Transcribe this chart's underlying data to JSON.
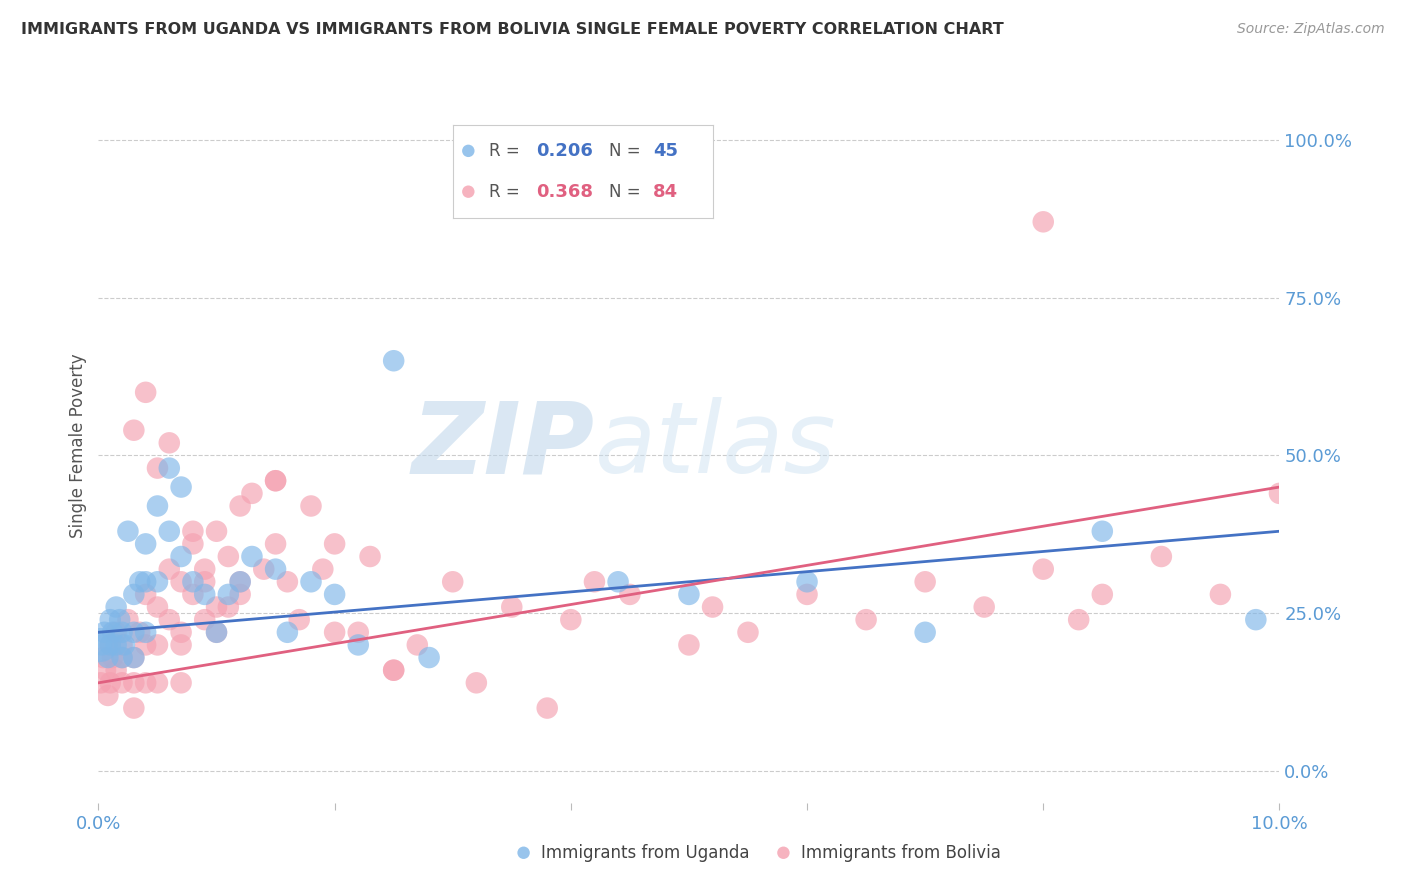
{
  "title": "IMMIGRANTS FROM UGANDA VS IMMIGRANTS FROM BOLIVIA SINGLE FEMALE POVERTY CORRELATION CHART",
  "source": "Source: ZipAtlas.com",
  "ylabel": "Single Female Poverty",
  "xlim": [
    0.0,
    0.1
  ],
  "ylim": [
    -0.05,
    1.08
  ],
  "yticks": [
    0.0,
    0.25,
    0.5,
    0.75,
    1.0
  ],
  "ytick_labels": [
    "0.0%",
    "25.0%",
    "50.0%",
    "75.0%",
    "100.0%"
  ],
  "xticks": [
    0.0,
    0.02,
    0.04,
    0.06,
    0.08,
    0.1
  ],
  "xtick_labels": [
    "0.0%",
    "",
    "",
    "",
    "",
    "10.0%"
  ],
  "color_uganda": "#7EB6E8",
  "color_bolivia": "#F4A0B0",
  "color_line_uganda": "#4472C4",
  "color_line_bolivia": "#E06080",
  "color_axis_labels": "#5B9BD5",
  "watermark_zip": "ZIP",
  "watermark_atlas": "atlas",
  "uganda_x": [
    0.0003,
    0.0005,
    0.0008,
    0.001,
    0.001,
    0.0012,
    0.0015,
    0.0015,
    0.0018,
    0.002,
    0.002,
    0.0022,
    0.0025,
    0.003,
    0.003,
    0.003,
    0.0035,
    0.004,
    0.004,
    0.004,
    0.005,
    0.005,
    0.006,
    0.006,
    0.007,
    0.007,
    0.008,
    0.009,
    0.01,
    0.011,
    0.012,
    0.013,
    0.015,
    0.016,
    0.018,
    0.02,
    0.022,
    0.025,
    0.028,
    0.044,
    0.05,
    0.06,
    0.07,
    0.085,
    0.098
  ],
  "uganda_y": [
    0.2,
    0.22,
    0.18,
    0.24,
    0.2,
    0.22,
    0.26,
    0.2,
    0.24,
    0.22,
    0.18,
    0.2,
    0.38,
    0.28,
    0.22,
    0.18,
    0.3,
    0.36,
    0.3,
    0.22,
    0.42,
    0.3,
    0.48,
    0.38,
    0.45,
    0.34,
    0.3,
    0.28,
    0.22,
    0.28,
    0.3,
    0.34,
    0.32,
    0.22,
    0.3,
    0.28,
    0.2,
    0.65,
    0.18,
    0.3,
    0.28,
    0.3,
    0.22,
    0.38,
    0.24
  ],
  "uganda_size": [
    20,
    20,
    20,
    20,
    20,
    20,
    20,
    20,
    20,
    20,
    20,
    20,
    20,
    20,
    20,
    20,
    20,
    20,
    20,
    20,
    20,
    20,
    20,
    20,
    20,
    20,
    20,
    20,
    20,
    20,
    20,
    20,
    20,
    20,
    20,
    20,
    20,
    20,
    20,
    20,
    20,
    20,
    20,
    20,
    20
  ],
  "uganda_large_x": [
    0.0002
  ],
  "uganda_large_y": [
    0.2
  ],
  "uganda_large_size": [
    600
  ],
  "bolivia_x": [
    0.0002,
    0.0004,
    0.0006,
    0.0008,
    0.001,
    0.001,
    0.0012,
    0.0015,
    0.0015,
    0.002,
    0.002,
    0.002,
    0.0025,
    0.003,
    0.003,
    0.003,
    0.0035,
    0.004,
    0.004,
    0.004,
    0.005,
    0.005,
    0.005,
    0.006,
    0.006,
    0.007,
    0.007,
    0.007,
    0.008,
    0.008,
    0.009,
    0.009,
    0.01,
    0.01,
    0.011,
    0.011,
    0.012,
    0.012,
    0.013,
    0.014,
    0.015,
    0.015,
    0.016,
    0.017,
    0.018,
    0.019,
    0.02,
    0.022,
    0.023,
    0.025,
    0.027,
    0.03,
    0.032,
    0.035,
    0.038,
    0.04,
    0.042,
    0.045,
    0.05,
    0.052,
    0.055,
    0.06,
    0.065,
    0.07,
    0.075,
    0.08,
    0.085,
    0.09,
    0.095,
    0.1,
    0.003,
    0.004,
    0.005,
    0.006,
    0.007,
    0.008,
    0.009,
    0.01,
    0.012,
    0.015,
    0.02,
    0.025,
    0.08,
    0.083
  ],
  "bolivia_y": [
    0.14,
    0.18,
    0.16,
    0.12,
    0.2,
    0.14,
    0.18,
    0.16,
    0.22,
    0.2,
    0.14,
    0.18,
    0.24,
    0.18,
    0.14,
    0.1,
    0.22,
    0.28,
    0.2,
    0.14,
    0.26,
    0.2,
    0.14,
    0.32,
    0.24,
    0.3,
    0.22,
    0.14,
    0.36,
    0.28,
    0.32,
    0.24,
    0.38,
    0.26,
    0.34,
    0.26,
    0.42,
    0.28,
    0.44,
    0.32,
    0.46,
    0.36,
    0.3,
    0.24,
    0.42,
    0.32,
    0.36,
    0.22,
    0.34,
    0.16,
    0.2,
    0.3,
    0.14,
    0.26,
    0.1,
    0.24,
    0.3,
    0.28,
    0.2,
    0.26,
    0.22,
    0.28,
    0.24,
    0.3,
    0.26,
    0.32,
    0.28,
    0.34,
    0.28,
    0.44,
    0.54,
    0.6,
    0.48,
    0.52,
    0.2,
    0.38,
    0.3,
    0.22,
    0.3,
    0.46,
    0.22,
    0.16,
    0.87,
    0.24
  ],
  "bolivia_size": [
    20,
    20,
    20,
    20,
    20,
    20,
    20,
    20,
    20,
    20,
    20,
    20,
    20,
    20,
    20,
    20,
    20,
    20,
    20,
    20,
    20,
    20,
    20,
    20,
    20,
    20,
    20,
    20,
    20,
    20,
    20,
    20,
    20,
    20,
    20,
    20,
    20,
    20,
    20,
    20,
    20,
    20,
    20,
    20,
    20,
    20,
    20,
    20,
    20,
    20,
    20,
    20,
    20,
    20,
    20,
    20,
    20,
    20,
    20,
    20,
    20,
    20,
    20,
    20,
    20,
    20,
    20,
    20,
    20,
    20,
    20,
    20,
    20,
    20,
    20,
    20,
    20,
    20,
    20,
    20,
    20,
    20,
    20,
    20
  ]
}
